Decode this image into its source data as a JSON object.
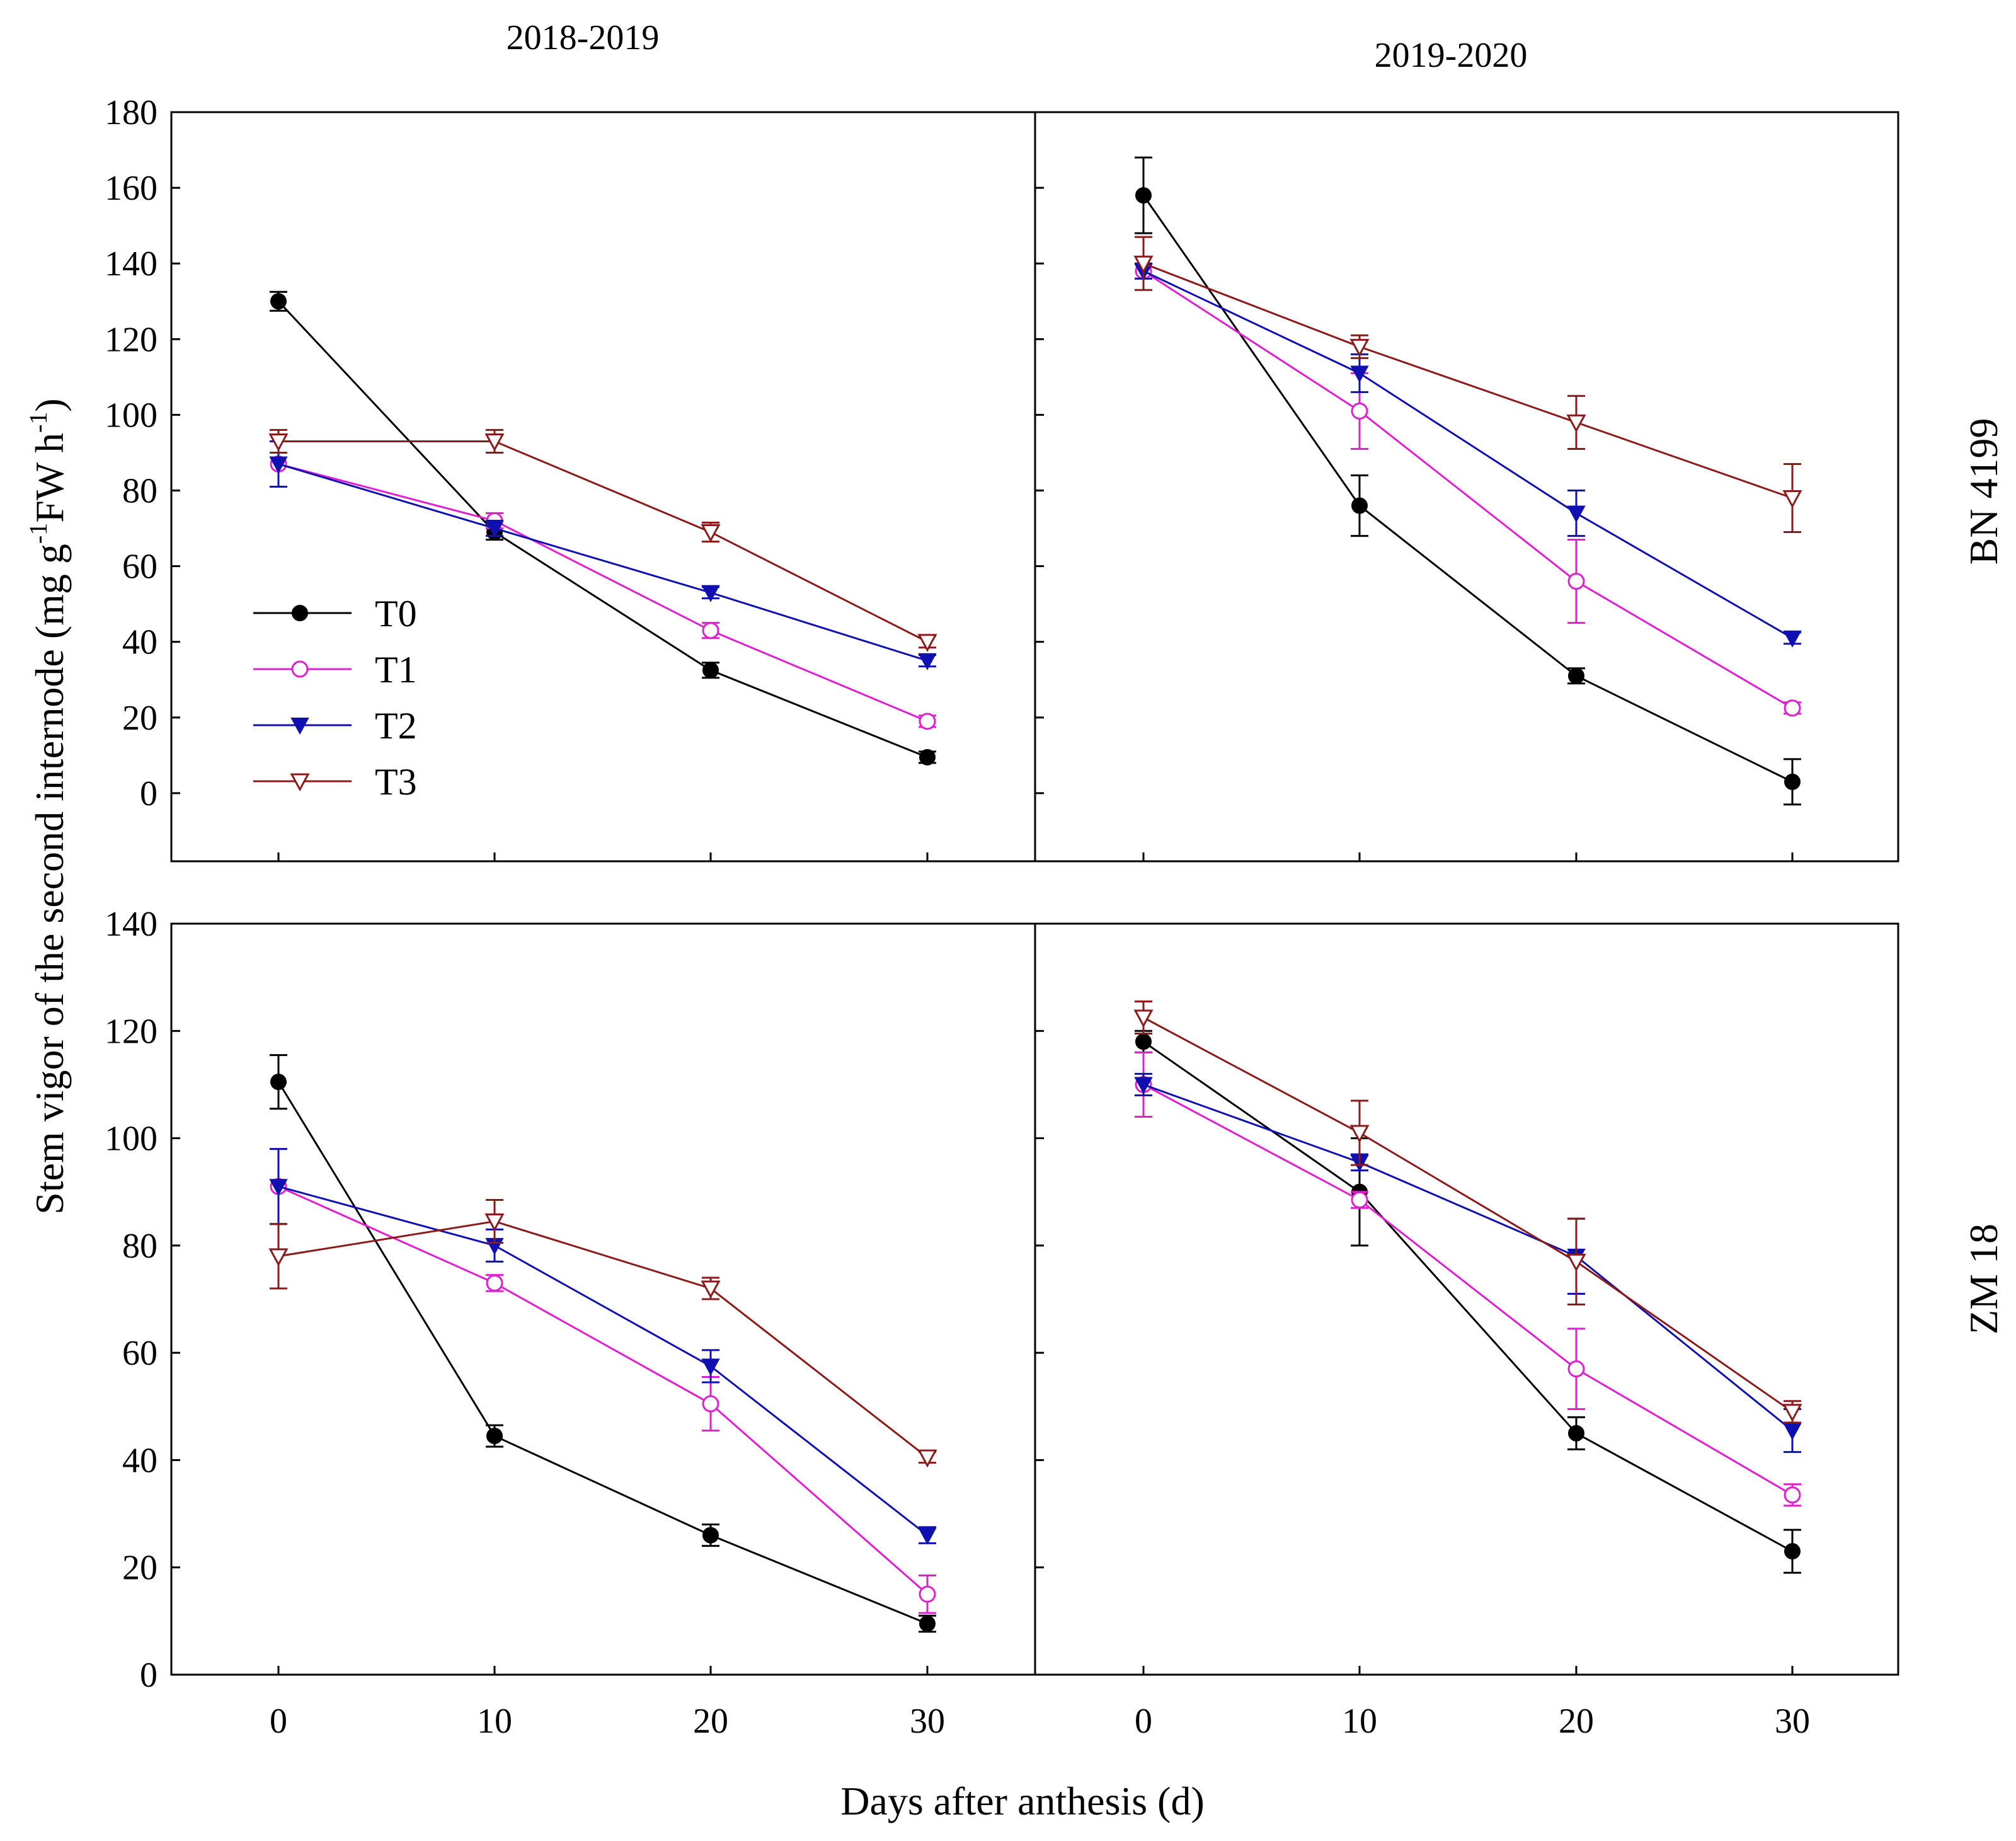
{
  "figure": {
    "column_titles": [
      "2018-2019",
      "2019-2020"
    ],
    "row_labels": [
      "BN 4199",
      "ZM 18"
    ],
    "ylabel_main": "Stem vigor of the second internode (mg g",
    "ylabel_sup1": "-1",
    "ylabel_mid": "FW h",
    "ylabel_sup2": "-1",
    "ylabel_end": ")",
    "xlabel": "Days after anthesis (d)"
  },
  "chart_data": {
    "type": "line",
    "x": [
      0,
      10,
      20,
      30
    ],
    "xticks": [
      "0",
      "10",
      "20",
      "30"
    ],
    "legend": [
      "T0",
      "T1",
      "T2",
      "T3"
    ],
    "legend_placement": "inside top-left panel, lower-left",
    "series_styles": [
      {
        "name": "T0",
        "color": "#000000",
        "marker": "filled-circle"
      },
      {
        "name": "T1",
        "color": "#e020d0",
        "marker": "open-circle"
      },
      {
        "name": "T2",
        "color": "#1010b0",
        "marker": "filled-triangle-down"
      },
      {
        "name": "T3",
        "color": "#8b1a1a",
        "marker": "open-triangle-down"
      }
    ],
    "panels": [
      {
        "row": "BN 4199",
        "season": "2018-2019",
        "ylim": [
          -18,
          180
        ],
        "yticks": [
          0,
          20,
          40,
          60,
          80,
          100,
          120,
          140,
          160,
          180
        ],
        "series": [
          {
            "name": "T0",
            "values": [
              130,
              69,
              32.5,
              9.5
            ],
            "errors": [
              2.5,
              2,
              2,
              1.5
            ]
          },
          {
            "name": "T1",
            "values": [
              87,
              72,
              43,
              19
            ],
            "errors": [
              6,
              2,
              2,
              1.5
            ]
          },
          {
            "name": "T2",
            "values": [
              87,
              70,
              53,
              35
            ],
            "errors": [
              6,
              2,
              1.5,
              1.5
            ]
          },
          {
            "name": "T3",
            "values": [
              93,
              93,
              69,
              40
            ],
            "errors": [
              3,
              3,
              2.5,
              1.5
            ]
          }
        ]
      },
      {
        "row": "BN 4199",
        "season": "2019-2020",
        "ylim": [
          -18,
          180
        ],
        "yticks": [
          0,
          20,
          40,
          60,
          80,
          100,
          120,
          140,
          160,
          180
        ],
        "series": [
          {
            "name": "T0",
            "values": [
              158,
              76,
              31,
              3
            ],
            "errors": [
              10,
              8,
              2,
              6
            ]
          },
          {
            "name": "T1",
            "values": [
              138,
              101,
              56,
              22.5
            ],
            "errors": [
              2,
              10,
              11,
              1.5
            ]
          },
          {
            "name": "T2",
            "values": [
              138,
              111,
              74,
              41
            ],
            "errors": [
              2,
              5,
              6,
              1.5
            ]
          },
          {
            "name": "T3",
            "values": [
              140,
              118,
              98,
              78
            ],
            "errors": [
              7,
              3,
              7,
              9
            ]
          }
        ]
      },
      {
        "row": "ZM 18",
        "season": "2018-2019",
        "ylim": [
          0,
          140
        ],
        "yticks": [
          0,
          20,
          40,
          60,
          80,
          100,
          120,
          140
        ],
        "series": [
          {
            "name": "T0",
            "values": [
              110.5,
              44.5,
              26,
              9.5
            ],
            "errors": [
              5,
              2,
              2,
              1.5
            ]
          },
          {
            "name": "T1",
            "values": [
              91,
              73,
              50.5,
              15
            ],
            "errors": [
              7,
              1.5,
              5,
              3.5
            ]
          },
          {
            "name": "T2",
            "values": [
              91,
              80,
              57.5,
              26
            ],
            "errors": [
              7,
              3,
              3,
              1.5
            ]
          },
          {
            "name": "T3",
            "values": [
              78,
              84.5,
              72,
              40.5
            ],
            "errors": [
              6,
              4,
              2,
              1
            ]
          }
        ]
      },
      {
        "row": "ZM 18",
        "season": "2019-2020",
        "ylim": [
          0,
          140
        ],
        "yticks": [
          0,
          20,
          40,
          60,
          80,
          100,
          120,
          140
        ],
        "series": [
          {
            "name": "T0",
            "values": [
              118,
              90,
              45,
              23
            ],
            "errors": [
              2,
              10,
              3,
              4
            ]
          },
          {
            "name": "T1",
            "values": [
              110,
              88.5,
              57,
              33.5
            ],
            "errors": [
              6,
              1.5,
              7.5,
              2
            ]
          },
          {
            "name": "T2",
            "values": [
              110,
              95.5,
              78,
              45.5
            ],
            "errors": [
              2,
              1.5,
              7,
              4
            ]
          },
          {
            "name": "T3",
            "values": [
              122.5,
              101,
              77,
              49
            ],
            "errors": [
              3,
              6,
              8,
              2
            ]
          }
        ]
      }
    ]
  }
}
